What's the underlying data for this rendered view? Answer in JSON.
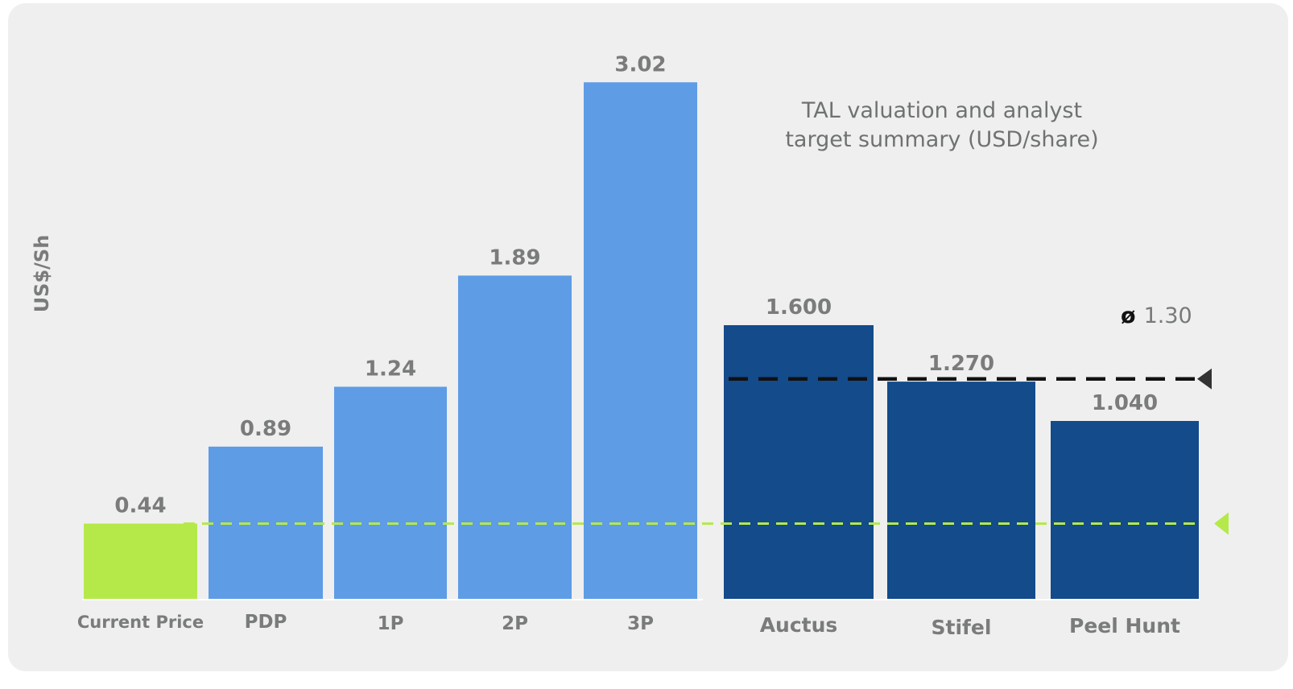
{
  "chart_data": {
    "type": "bar",
    "title": "TAL valuation and analyst target summary (USD/share)",
    "ylabel": "US$/Sh",
    "categories": [
      "Current Price",
      "PDP",
      "1P",
      "2P",
      "3P",
      "Auctus",
      "Stifel",
      "Peel Hunt"
    ],
    "value_labels": [
      "0.44",
      "0.89",
      "1.24",
      "1.89",
      "3.02",
      "1.600",
      "1.270",
      "1.040"
    ],
    "values": [
      0.44,
      0.89,
      1.24,
      1.89,
      3.02,
      1.6,
      1.27,
      1.04
    ],
    "groups": [
      "current",
      "valuation",
      "valuation",
      "valuation",
      "valuation",
      "analyst",
      "analyst",
      "analyst"
    ],
    "colors": {
      "current": "#b5e94a",
      "valuation": "#5e9ce6",
      "analyst": "#134b8b",
      "current_line": "#b5e94a",
      "average_line": "#111111"
    },
    "reference_lines": {
      "current_price": 0.44,
      "average": {
        "value": 1.3,
        "label": "1.30",
        "symbol": "ø"
      }
    },
    "ylim": [
      0,
      3.1
    ],
    "grid": false,
    "legend": "none"
  }
}
